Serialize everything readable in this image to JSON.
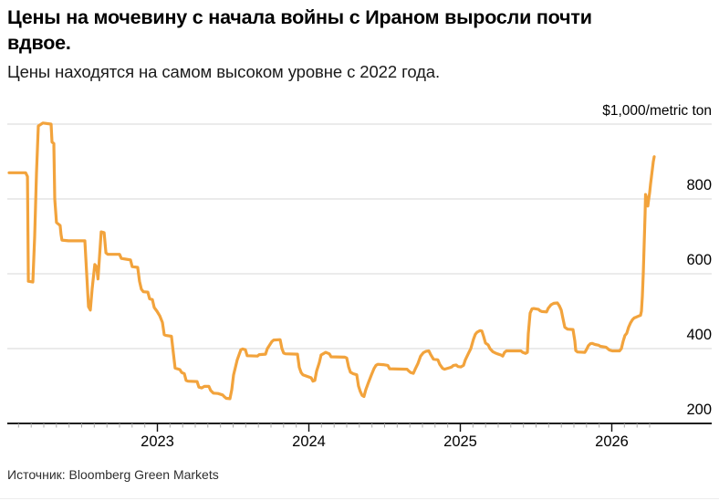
{
  "header": {
    "title_lines": [
      "Цены на мочевину с начала войны с Ираном выросли почти",
      "вдвое."
    ],
    "subtitle": "Цены находятся на самом высоком уровне с 2022 года."
  },
  "source": {
    "label": "Источник: Bloomberg Green Markets"
  },
  "chart_data": {
    "type": "line",
    "title": "Цены на мочевину с начала войны с Ираном выросли почти вдвое.",
    "subtitle": "Цены находятся на самом высоком уровне с 2022 года.",
    "unit_label": "$1,000/metric ton",
    "x_unit": "year (decimal, monthly ticks)",
    "x_range": [
      2022.02,
      2026.28
    ],
    "ylim": [
      200,
      1000
    ],
    "grid": "horizontal",
    "legend": "none",
    "line_color": "#F2A33C",
    "xticks": {
      "values": [
        2023,
        2024,
        2025,
        2026
      ],
      "labels": [
        "2023",
        "2024",
        "2025",
        "2026"
      ]
    },
    "yticks": {
      "values": [
        800,
        600,
        400,
        200
      ],
      "labels": [
        "800",
        "600",
        "400",
        "200"
      ],
      "top_value": 1000,
      "top_label": "$1,000/metric ton"
    },
    "series": [
      {
        "points": [
          [
            2022.021,
            870
          ],
          [
            2022.13,
            870
          ],
          [
            2022.142,
            860
          ],
          [
            2022.148,
            580
          ],
          [
            2022.178,
            578
          ],
          [
            2022.19,
            700
          ],
          [
            2022.202,
            870
          ],
          [
            2022.214,
            995
          ],
          [
            2022.244,
            1003
          ],
          [
            2022.298,
            1000
          ],
          [
            2022.304,
            952
          ],
          [
            2022.316,
            948
          ],
          [
            2022.322,
            800
          ],
          [
            2022.334,
            737
          ],
          [
            2022.358,
            729
          ],
          [
            2022.364,
            705
          ],
          [
            2022.37,
            690
          ],
          [
            2022.413,
            688
          ],
          [
            2022.521,
            688
          ],
          [
            2022.533,
            600
          ],
          [
            2022.545,
            512
          ],
          [
            2022.557,
            503
          ],
          [
            2022.569,
            560
          ],
          [
            2022.587,
            625
          ],
          [
            2022.599,
            618
          ],
          [
            2022.608,
            586
          ],
          [
            2022.617,
            640
          ],
          [
            2022.629,
            712
          ],
          [
            2022.648,
            710
          ],
          [
            2022.66,
            656
          ],
          [
            2022.672,
            652
          ],
          [
            2022.75,
            652
          ],
          [
            2022.762,
            641
          ],
          [
            2022.792,
            639
          ],
          [
            2022.822,
            637
          ],
          [
            2022.834,
            619
          ],
          [
            2022.87,
            617
          ],
          [
            2022.882,
            580
          ],
          [
            2022.894,
            559
          ],
          [
            2022.907,
            552
          ],
          [
            2022.937,
            551
          ],
          [
            2022.949,
            533
          ],
          [
            2022.967,
            531
          ],
          [
            2022.979,
            510
          ],
          [
            2022.997,
            500
          ],
          [
            2023.015,
            488
          ],
          [
            2023.033,
            470
          ],
          [
            2023.045,
            437
          ],
          [
            2023.057,
            435
          ],
          [
            2023.093,
            433
          ],
          [
            2023.105,
            390
          ],
          [
            2023.117,
            348
          ],
          [
            2023.148,
            344
          ],
          [
            2023.16,
            336
          ],
          [
            2023.178,
            333
          ],
          [
            2023.19,
            315
          ],
          [
            2023.202,
            313
          ],
          [
            2023.262,
            312
          ],
          [
            2023.274,
            297
          ],
          [
            2023.292,
            295
          ],
          [
            2023.31,
            299
          ],
          [
            2023.34,
            299
          ],
          [
            2023.352,
            288
          ],
          [
            2023.37,
            281
          ],
          [
            2023.4,
            280
          ],
          [
            2023.431,
            276
          ],
          [
            2023.443,
            271
          ],
          [
            2023.455,
            267
          ],
          [
            2023.479,
            266
          ],
          [
            2023.491,
            290
          ],
          [
            2023.503,
            330
          ],
          [
            2023.527,
            370
          ],
          [
            2023.551,
            397
          ],
          [
            2023.563,
            399
          ],
          [
            2023.581,
            397
          ],
          [
            2023.593,
            381
          ],
          [
            2023.66,
            380
          ],
          [
            2023.672,
            384
          ],
          [
            2023.714,
            385
          ],
          [
            2023.726,
            400
          ],
          [
            2023.756,
            419
          ],
          [
            2023.768,
            423
          ],
          [
            2023.81,
            424
          ],
          [
            2023.822,
            400
          ],
          [
            2023.834,
            388
          ],
          [
            2023.846,
            386
          ],
          [
            2023.925,
            385
          ],
          [
            2023.937,
            350
          ],
          [
            2023.949,
            336
          ],
          [
            2023.961,
            330
          ],
          [
            2024.015,
            322
          ],
          [
            2024.027,
            313
          ],
          [
            2024.039,
            315
          ],
          [
            2024.051,
            340
          ],
          [
            2024.069,
            363
          ],
          [
            2024.081,
            383
          ],
          [
            2024.099,
            387
          ],
          [
            2024.111,
            390
          ],
          [
            2024.135,
            386
          ],
          [
            2024.147,
            378
          ],
          [
            2024.238,
            377
          ],
          [
            2024.25,
            375
          ],
          [
            2024.262,
            352
          ],
          [
            2024.274,
            337
          ],
          [
            2024.292,
            333
          ],
          [
            2024.316,
            330
          ],
          [
            2024.328,
            300
          ],
          [
            2024.34,
            285
          ],
          [
            2024.352,
            275
          ],
          [
            2024.364,
            272
          ],
          [
            2024.376,
            290
          ],
          [
            2024.394,
            310
          ],
          [
            2024.413,
            330
          ],
          [
            2024.431,
            347
          ],
          [
            2024.443,
            355
          ],
          [
            2024.455,
            358
          ],
          [
            2024.491,
            357
          ],
          [
            2024.521,
            355
          ],
          [
            2024.533,
            346
          ],
          [
            2024.648,
            345
          ],
          [
            2024.66,
            340
          ],
          [
            2024.672,
            336
          ],
          [
            2024.69,
            334
          ],
          [
            2024.702,
            345
          ],
          [
            2024.72,
            360
          ],
          [
            2024.738,
            380
          ],
          [
            2024.756,
            389
          ],
          [
            2024.774,
            393
          ],
          [
            2024.792,
            394
          ],
          [
            2024.804,
            384
          ],
          [
            2024.822,
            372
          ],
          [
            2024.852,
            370
          ],
          [
            2024.864,
            358
          ],
          [
            2024.883,
            347
          ],
          [
            2024.895,
            345
          ],
          [
            2024.931,
            349
          ],
          [
            2024.943,
            351
          ],
          [
            2024.955,
            355
          ],
          [
            2024.973,
            356
          ],
          [
            2024.985,
            352
          ],
          [
            2025.003,
            351
          ],
          [
            2025.021,
            355
          ],
          [
            2025.033,
            370
          ],
          [
            2025.051,
            385
          ],
          [
            2025.069,
            400
          ],
          [
            2025.087,
            425
          ],
          [
            2025.099,
            438
          ],
          [
            2025.111,
            444
          ],
          [
            2025.13,
            448
          ],
          [
            2025.142,
            447
          ],
          [
            2025.154,
            432
          ],
          [
            2025.166,
            415
          ],
          [
            2025.184,
            410
          ],
          [
            2025.196,
            400
          ],
          [
            2025.214,
            392
          ],
          [
            2025.232,
            388
          ],
          [
            2025.244,
            386
          ],
          [
            2025.268,
            383
          ],
          [
            2025.28,
            380
          ],
          [
            2025.292,
            390
          ],
          [
            2025.304,
            394
          ],
          [
            2025.4,
            394
          ],
          [
            2025.412,
            390
          ],
          [
            2025.431,
            387
          ],
          [
            2025.443,
            390
          ],
          [
            2025.449,
            440
          ],
          [
            2025.461,
            495
          ],
          [
            2025.473,
            506
          ],
          [
            2025.485,
            507
          ],
          [
            2025.515,
            505
          ],
          [
            2025.527,
            501
          ],
          [
            2025.539,
            499
          ],
          [
            2025.569,
            498
          ],
          [
            2025.581,
            508
          ],
          [
            2025.599,
            517
          ],
          [
            2025.617,
            521
          ],
          [
            2025.641,
            522
          ],
          [
            2025.654,
            514
          ],
          [
            2025.666,
            503
          ],
          [
            2025.678,
            480
          ],
          [
            2025.69,
            457
          ],
          [
            2025.708,
            452
          ],
          [
            2025.744,
            451
          ],
          [
            2025.756,
            420
          ],
          [
            2025.762,
            395
          ],
          [
            2025.774,
            391
          ],
          [
            2025.822,
            390
          ],
          [
            2025.834,
            398
          ],
          [
            2025.846,
            408
          ],
          [
            2025.858,
            413
          ],
          [
            2025.87,
            414
          ],
          [
            2025.889,
            411
          ],
          [
            2025.913,
            409
          ],
          [
            2025.925,
            406
          ],
          [
            2025.961,
            404
          ],
          [
            2025.973,
            400
          ],
          [
            2025.985,
            396
          ],
          [
            2026.003,
            394
          ],
          [
            2026.051,
            394
          ],
          [
            2026.063,
            400
          ],
          [
            2026.075,
            420
          ],
          [
            2026.087,
            435
          ],
          [
            2026.099,
            441
          ],
          [
            2026.111,
            457
          ],
          [
            2026.123,
            468
          ],
          [
            2026.136,
            477
          ],
          [
            2026.148,
            482
          ],
          [
            2026.16,
            484
          ],
          [
            2026.178,
            487
          ],
          [
            2026.19,
            489
          ],
          [
            2026.196,
            500
          ],
          [
            2026.202,
            540
          ],
          [
            2026.208,
            600
          ],
          [
            2026.214,
            680
          ],
          [
            2026.22,
            760
          ],
          [
            2026.223,
            812
          ],
          [
            2026.232,
            800
          ],
          [
            2026.238,
            781
          ],
          [
            2026.244,
            800
          ],
          [
            2026.25,
            817
          ],
          [
            2026.256,
            840
          ],
          [
            2026.268,
            880
          ],
          [
            2026.274,
            900
          ],
          [
            2026.28,
            913
          ]
        ]
      }
    ]
  }
}
